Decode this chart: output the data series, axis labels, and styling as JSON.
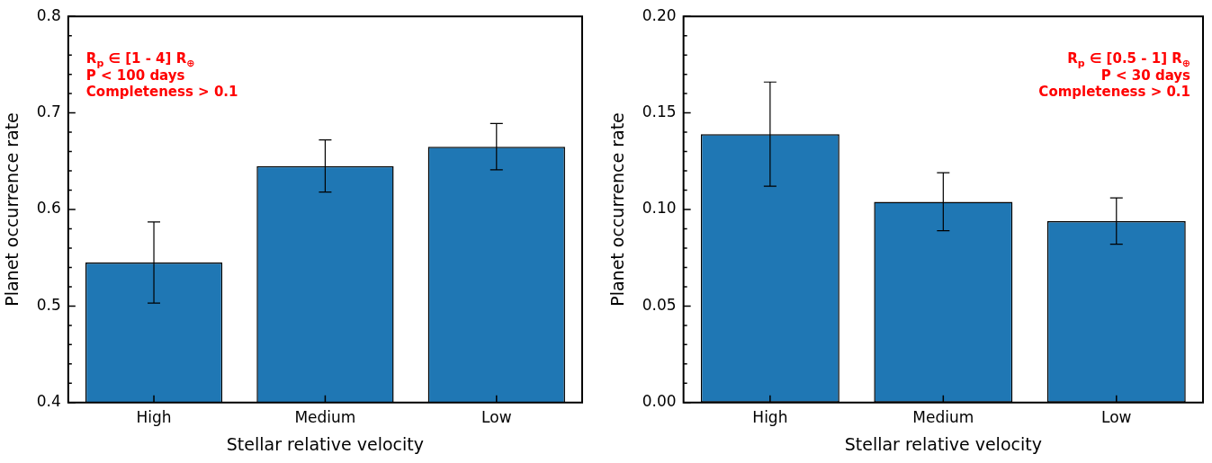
{
  "chart_data": [
    {
      "type": "bar",
      "xlabel": "Stellar relative velocity",
      "ylabel": "Planet occurrence rate",
      "categories": [
        "High",
        "Medium",
        "Low"
      ],
      "values": [
        0.545,
        0.645,
        0.665
      ],
      "errors": [
        0.042,
        0.027,
        0.024
      ],
      "color": "#1f77b4",
      "ylim": [
        0.4,
        0.8
      ],
      "yticks": [
        0.4,
        {
          "value": 0.42,
          "label": null
        },
        {
          "value": 0.44,
          "label": null
        },
        {
          "value": 0.46,
          "label": null
        },
        {
          "value": 0.48,
          "label": null
        },
        0.5,
        {
          "value": 0.52,
          "label": null
        },
        {
          "value": 0.54,
          "label": null
        },
        {
          "value": 0.56,
          "label": null
        },
        {
          "value": 0.58,
          "label": null
        },
        0.6,
        {
          "value": 0.62,
          "label": null
        },
        {
          "value": 0.64,
          "label": null
        },
        {
          "value": 0.66,
          "label": null
        },
        {
          "value": 0.68,
          "label": null
        },
        0.7,
        {
          "value": 0.72,
          "label": null
        },
        {
          "value": 0.74,
          "label": null
        },
        {
          "value": 0.76,
          "label": null
        },
        {
          "value": 0.78,
          "label": null
        },
        0.8
      ],
      "grid": false,
      "legend": false,
      "annotations": [
        "R$_{p}$ ∈ [1 - 4] R$_{⊕}$",
        "P < 100 days",
        "Completeness > 0.1"
      ]
    },
    {
      "type": "bar",
      "xlabel": "Stellar relative velocity",
      "ylabel": "Planet occurrence rate",
      "categories": [
        "High",
        "Medium",
        "Low"
      ],
      "values": [
        0.139,
        0.104,
        0.094
      ],
      "errors": [
        0.027,
        0.015,
        0.012
      ],
      "color": "#1f77b4",
      "ylim": [
        0,
        0.2
      ],
      "yticks": [
        {
          "value": 0,
          "label": "0.00"
        },
        {
          "value": 0.01,
          "label": null
        },
        {
          "value": 0.02,
          "label": null
        },
        {
          "value": 0.03,
          "label": null
        },
        {
          "value": 0.04,
          "label": null
        },
        {
          "value": 0.05,
          "label": "0.05"
        },
        {
          "value": 0.06,
          "label": null
        },
        {
          "value": 0.07,
          "label": null
        },
        {
          "value": 0.08,
          "label": null
        },
        {
          "value": 0.09,
          "label": null
        },
        {
          "value": 0.1,
          "label": "0.10"
        },
        {
          "value": 0.11,
          "label": null
        },
        {
          "value": 0.12,
          "label": null
        },
        {
          "value": 0.13,
          "label": null
        },
        {
          "value": 0.14,
          "label": null
        },
        {
          "value": 0.15,
          "label": "0.15"
        },
        {
          "value": 0.16,
          "label": null
        },
        {
          "value": 0.17,
          "label": null
        },
        {
          "value": 0.18,
          "label": null
        },
        {
          "value": 0.19,
          "label": null
        },
        {
          "value": 0.2,
          "label": "0.20"
        }
      ],
      "grid": false,
      "legend": false,
      "annotations": [
        "R$_{p}$ ∈ [0.5 - 1] R$_{⊕}$",
        "P < 30 days",
        "Completeness > 0.1"
      ]
    }
  ]
}
